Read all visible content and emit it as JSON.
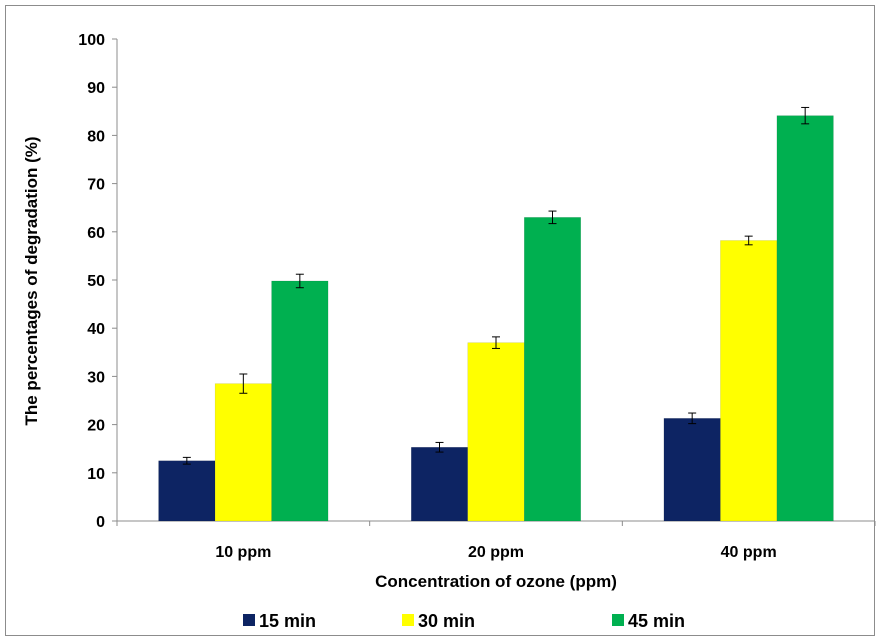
{
  "chart_data": {
    "type": "bar",
    "title": "",
    "xlabel": "Concentration of ozone (ppm)",
    "ylabel": "The percentages of degradation (%)",
    "categories": [
      "10 ppm",
      "20 ppm",
      "40 ppm"
    ],
    "ylim": [
      0,
      100
    ],
    "yticks": [
      "0",
      "10",
      "20",
      "30",
      "40",
      "50",
      "60",
      "70",
      "80",
      "90",
      "100"
    ],
    "grid": false,
    "legend_position": "bottom",
    "series": [
      {
        "name": "15 min",
        "color": "#0d2463",
        "values": [
          12.5,
          15.3,
          21.3
        ],
        "errors": [
          0.7,
          1.0,
          1.1
        ]
      },
      {
        "name": "30 min",
        "color": "#ffff00",
        "values": [
          28.5,
          37.0,
          58.2
        ],
        "errors": [
          2.0,
          1.2,
          0.9
        ]
      },
      {
        "name": "45 min",
        "color": "#00b050",
        "values": [
          49.8,
          63.0,
          84.1
        ],
        "errors": [
          1.4,
          1.3,
          1.7
        ]
      }
    ]
  }
}
